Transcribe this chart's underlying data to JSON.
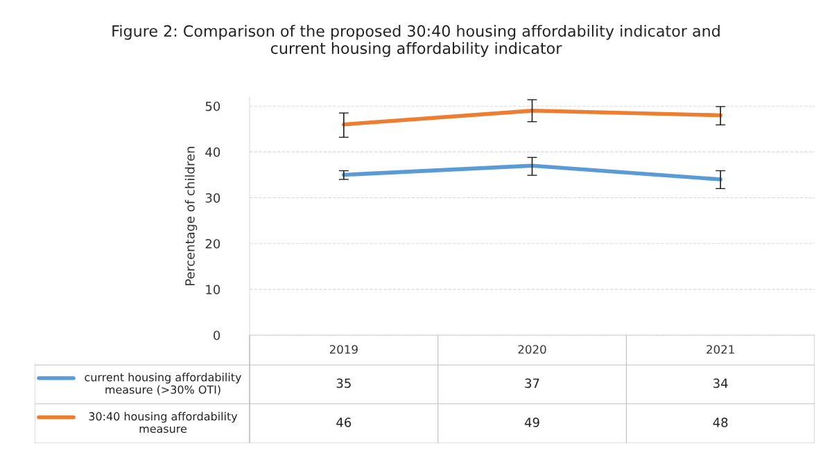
{
  "chart_data": {
    "type": "line",
    "title": "Figure 2: Comparison of the proposed 30:40 housing affordability indicator and current housing affordability indicator",
    "ylabel": "Percentage of children",
    "categories": [
      "2019",
      "2020",
      "2021"
    ],
    "series": [
      {
        "name": "current housing affordability measure (>30% OTI)",
        "color": "#5b9bd5",
        "values": [
          35,
          37,
          34
        ],
        "errors": [
          [
            34.0,
            35.9
          ],
          [
            34.9,
            38.8
          ],
          [
            32.0,
            35.9
          ]
        ]
      },
      {
        "name": "30:40 housing affordability measure",
        "color": "#ed7d31",
        "values": [
          46,
          49,
          48
        ],
        "errors": [
          [
            43.2,
            48.5
          ],
          [
            46.6,
            51.4
          ],
          [
            45.9,
            49.9
          ]
        ]
      }
    ],
    "ylim": [
      0,
      52
    ],
    "yticks": [
      0,
      10,
      20,
      30,
      40,
      50
    ],
    "grid": "y",
    "legend": "bottom left",
    "data_labels": true,
    "marker": "none",
    "line_style": "solid"
  }
}
